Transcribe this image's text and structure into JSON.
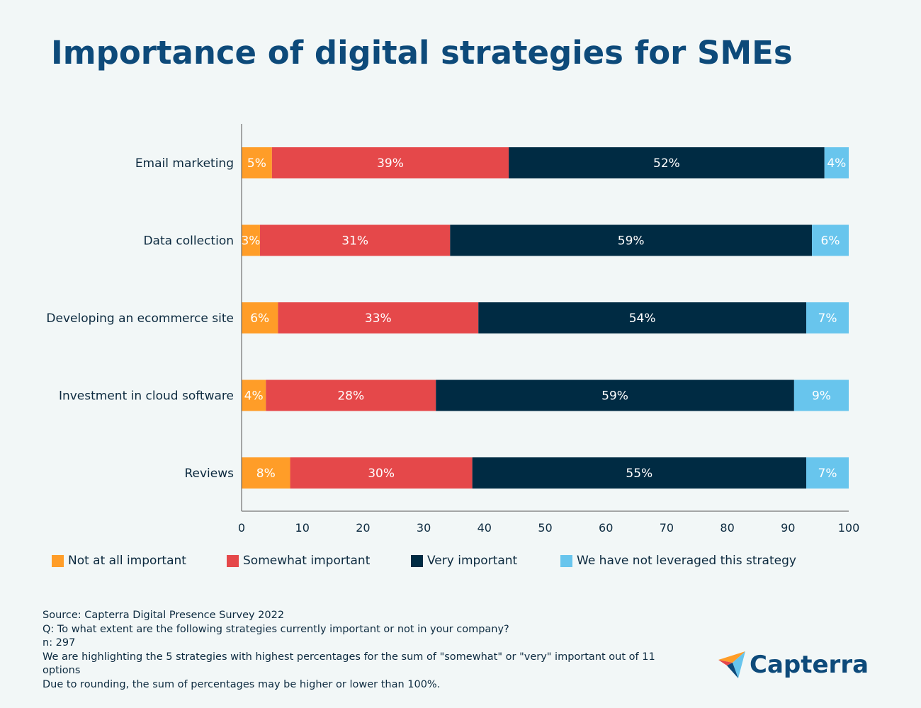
{
  "colors": {
    "background": "#f2f7f7",
    "title": "#0d4a7a",
    "not_at_all": "#ff9d28",
    "somewhat": "#e5484a",
    "very": "#002b43",
    "not_leveraged": "#68c5ed"
  },
  "chart_data": {
    "type": "bar",
    "orientation": "horizontal",
    "stacked": true,
    "title": "Importance of digital strategies for SMEs",
    "categories": [
      "Email marketing",
      "Data collection",
      "Developing an ecommerce site",
      "Investment in cloud software",
      "Reviews"
    ],
    "series": [
      {
        "name": "Not at all important",
        "color": "#ff9d28",
        "values": [
          5,
          3,
          6,
          4,
          8
        ]
      },
      {
        "name": "Somewhat important",
        "color": "#e5484a",
        "values": [
          39,
          31,
          33,
          28,
          30
        ]
      },
      {
        "name": "Very important",
        "color": "#002b43",
        "values": [
          52,
          59,
          54,
          59,
          55
        ]
      },
      {
        "name": "We have not leveraged this strategy",
        "color": "#68c5ed",
        "values": [
          4,
          6,
          7,
          9,
          7
        ]
      }
    ],
    "data_label_suffix": "%",
    "xlim": [
      0,
      100
    ],
    "xticks": [
      0,
      10,
      20,
      30,
      40,
      50,
      60,
      70,
      80,
      90,
      100
    ],
    "grid": false,
    "legend_position": "bottom"
  },
  "footer": {
    "lines": [
      "Source: Capterra Digital Presence Survey 2022",
      "Q: To what extent are the following strategies currently important or not in your company?",
      "n: 297",
      "We are highlighting the 5 strategies with highest percentages for the sum of \"somewhat\" or \"very\" important out of 11 options",
      "Due to rounding, the sum of percentages may be higher or lower than 100%."
    ]
  },
  "logo": {
    "text": "Capterra"
  }
}
